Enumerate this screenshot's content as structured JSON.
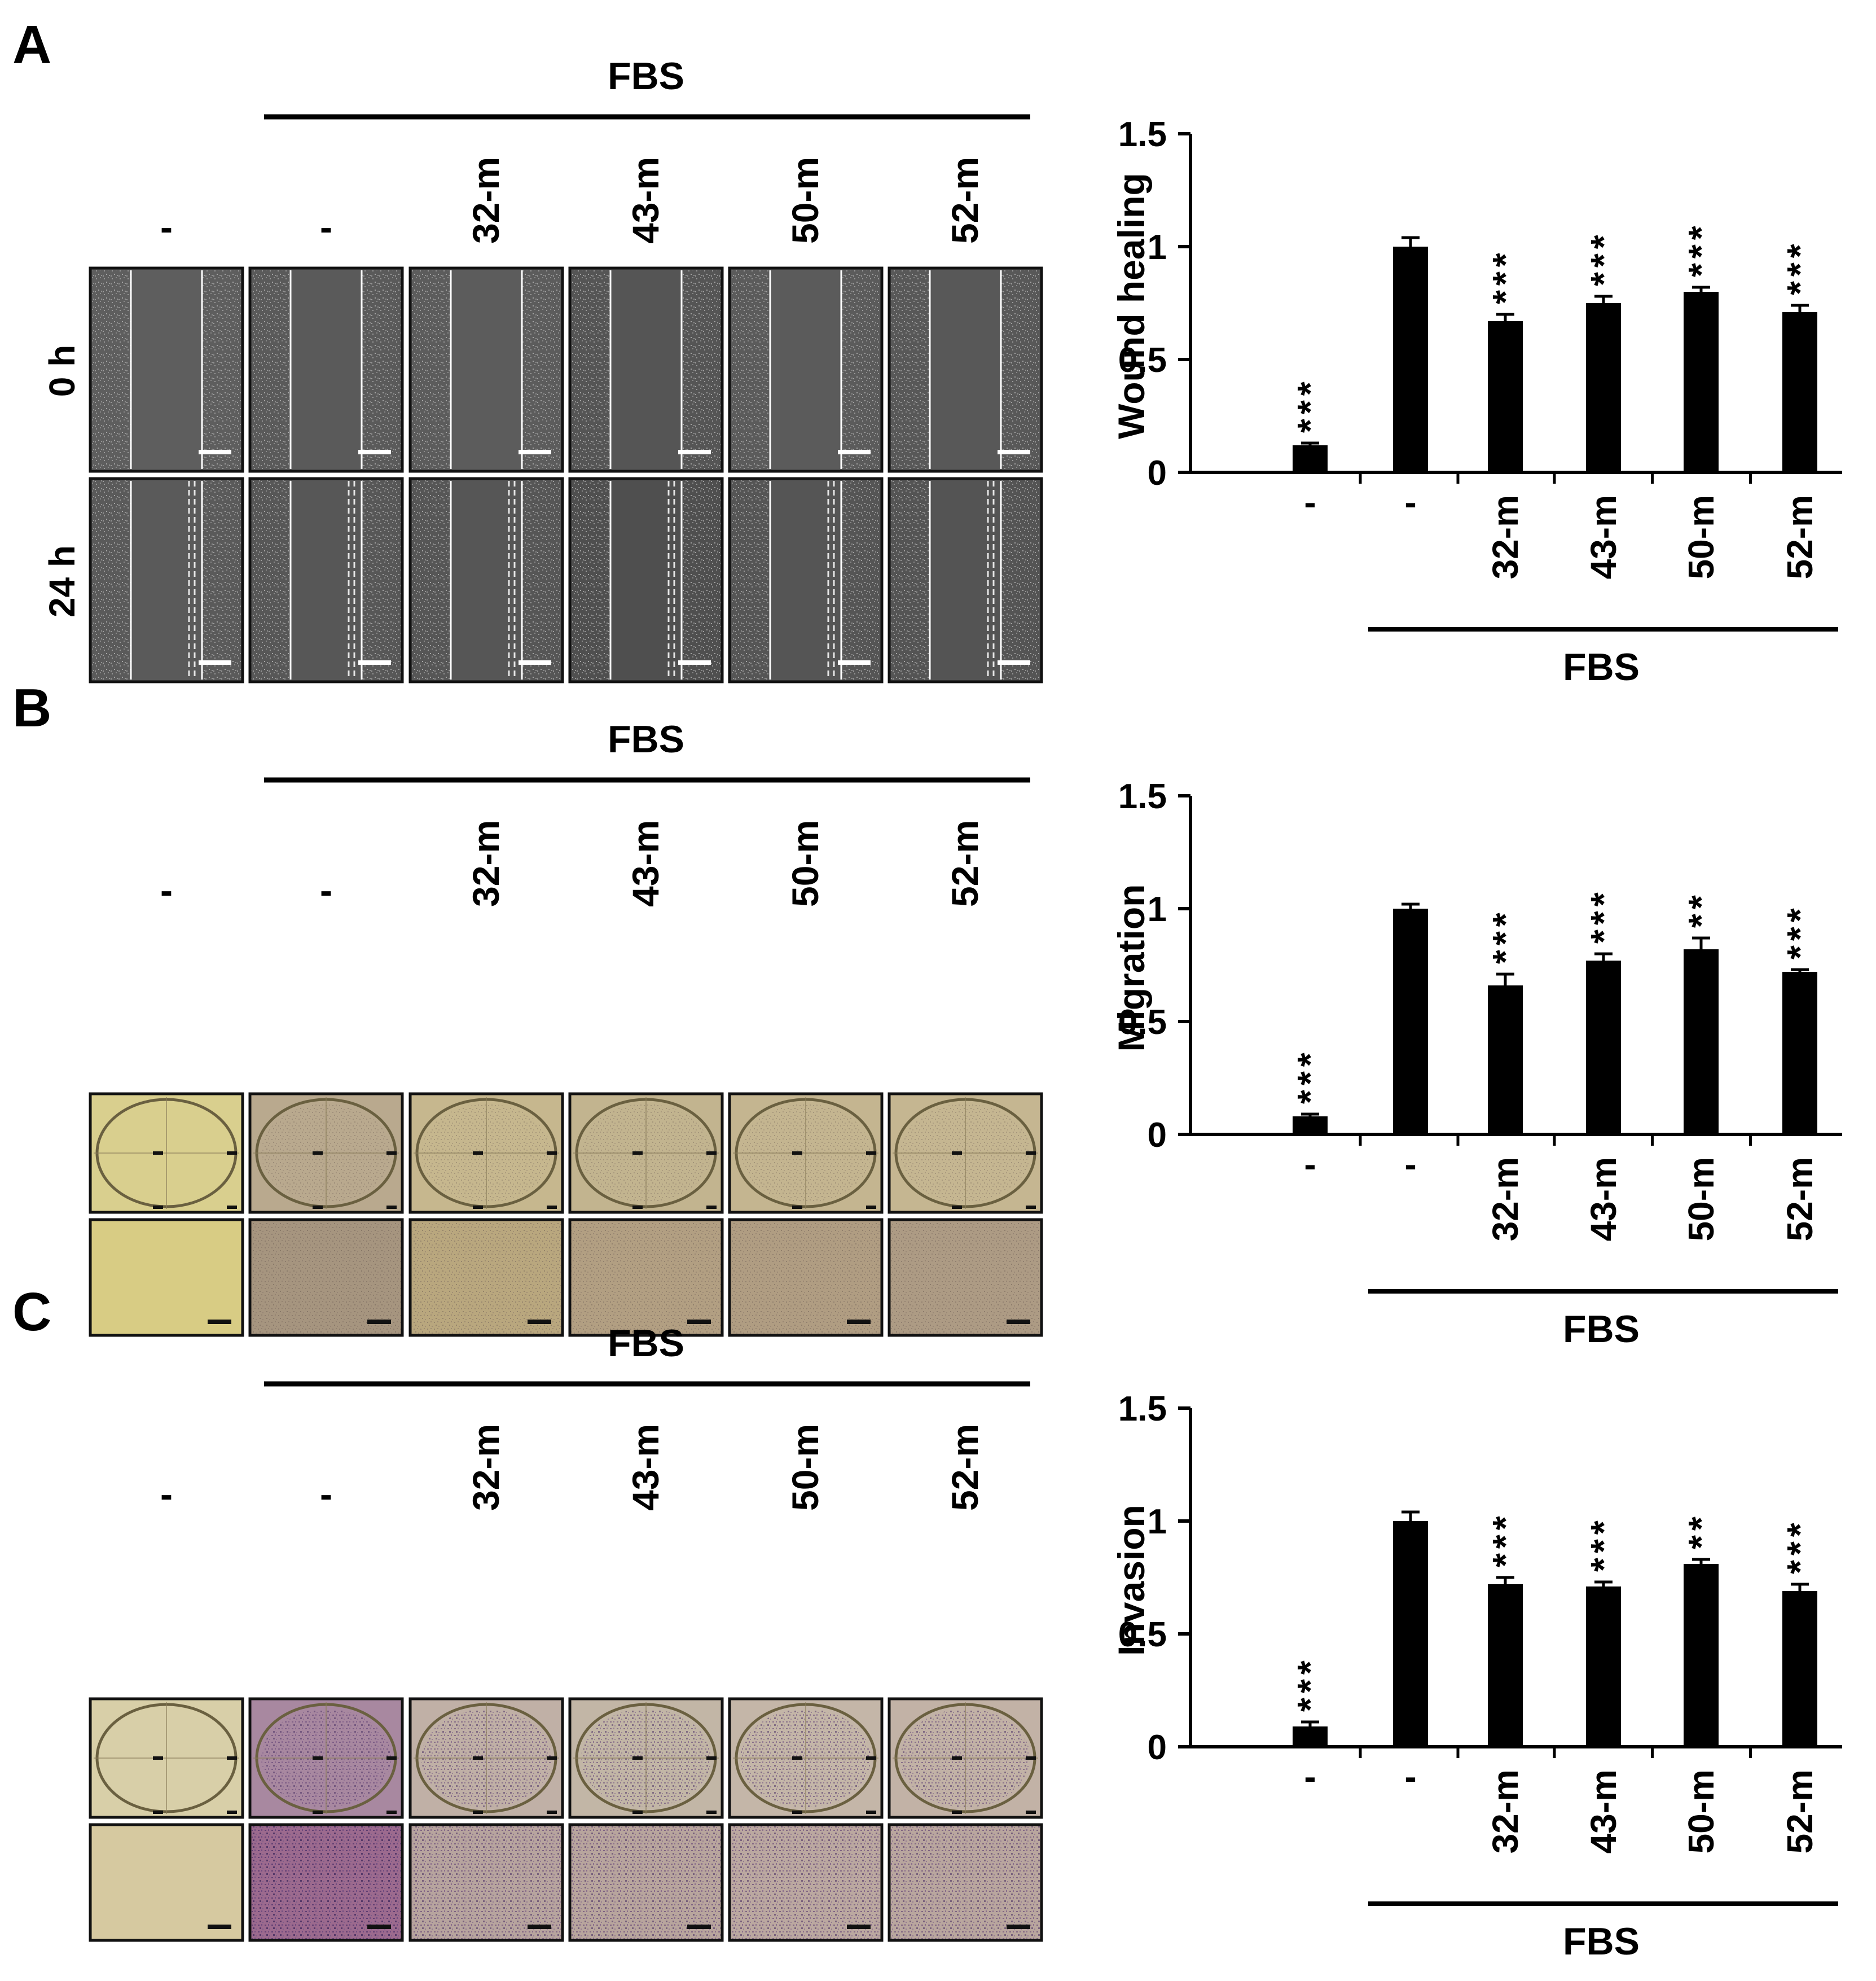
{
  "panels": [
    {
      "letter": "A",
      "fbs_label": "FBS",
      "columns": [
        "-",
        "-",
        "32-m",
        "43-m",
        "50-m",
        "52-m"
      ],
      "row_labels": [
        "0 h",
        "24 h"
      ],
      "image_kind": "wound",
      "colors": {
        "top": [
          "#5e5e5e",
          "#5a5a5a",
          "#5c5c5c",
          "#555555",
          "#5b5b5b",
          "#585858"
        ],
        "bottom": [
          "#5a5a5a",
          "#575757",
          "#565656",
          "#4f4f4f",
          "#555555",
          "#545454"
        ]
      }
    },
    {
      "letter": "B",
      "fbs_label": "FBS",
      "columns": [
        "-",
        "-",
        "32-m",
        "43-m",
        "50-m",
        "52-m"
      ],
      "row_labels": [],
      "image_kind": "well",
      "colors": {
        "top": [
          "#d9cf8e",
          "#b9a98e",
          "#c6b78e",
          "#c2b48f",
          "#c4b590",
          "#c5b691"
        ],
        "bottom": [
          "#d8cc84",
          "#a6957f",
          "#b9a77e",
          "#b29f82",
          "#b09d82",
          "#ad9b84"
        ]
      }
    },
    {
      "letter": "C",
      "fbs_label": "FBS",
      "columns": [
        "-",
        "-",
        "32-m",
        "43-m",
        "50-m",
        "52-m"
      ],
      "row_labels": [],
      "image_kind": "well",
      "colors": {
        "top": [
          "#d8cfa8",
          "#a888a0",
          "#c0b0a6",
          "#c2b6a6",
          "#c4b6a8",
          "#c2b2a6"
        ],
        "bottom": [
          "#d6c9a0",
          "#9c6a8e",
          "#b7a49e",
          "#b8a59d",
          "#bba8a0",
          "#b9a69e"
        ]
      }
    }
  ],
  "chart_data": [
    {
      "type": "bar",
      "categories": [
        "-",
        "-",
        "32-m",
        "43-m",
        "50-m",
        "52-m"
      ],
      "values": [
        0.12,
        1.0,
        0.67,
        0.75,
        0.8,
        0.71
      ],
      "errors": [
        0.01,
        0.04,
        0.03,
        0.03,
        0.02,
        0.03
      ],
      "significance": [
        "***",
        "",
        "***",
        "***",
        "***",
        "***"
      ],
      "ylabel": "Wound healing",
      "ylim": [
        0,
        1.5
      ],
      "yticks": [
        "0",
        "0.5",
        "1",
        "1.5"
      ],
      "group_label": "FBS"
    },
    {
      "type": "bar",
      "categories": [
        "-",
        "-",
        "32-m",
        "43-m",
        "50-m",
        "52-m"
      ],
      "values": [
        0.08,
        1.0,
        0.66,
        0.77,
        0.82,
        0.72
      ],
      "errors": [
        0.01,
        0.02,
        0.05,
        0.03,
        0.05,
        0.01
      ],
      "significance": [
        "***",
        "",
        "***",
        "***",
        "**",
        "***"
      ],
      "ylabel": "Migration",
      "ylim": [
        0,
        1.5
      ],
      "yticks": [
        "0",
        "0.5",
        "1",
        "1.5"
      ],
      "group_label": "FBS"
    },
    {
      "type": "bar",
      "categories": [
        "-",
        "-",
        "32-m",
        "43-m",
        "50-m",
        "52-m"
      ],
      "values": [
        0.09,
        1.0,
        0.72,
        0.71,
        0.81,
        0.69
      ],
      "errors": [
        0.02,
        0.04,
        0.03,
        0.02,
        0.02,
        0.03
      ],
      "significance": [
        "***",
        "",
        "***",
        "***",
        "**",
        "***"
      ],
      "ylabel": "Invasion",
      "ylim": [
        0,
        1.5
      ],
      "yticks": [
        "0",
        "0.5",
        "1",
        "1.5"
      ],
      "group_label": "FBS"
    }
  ]
}
